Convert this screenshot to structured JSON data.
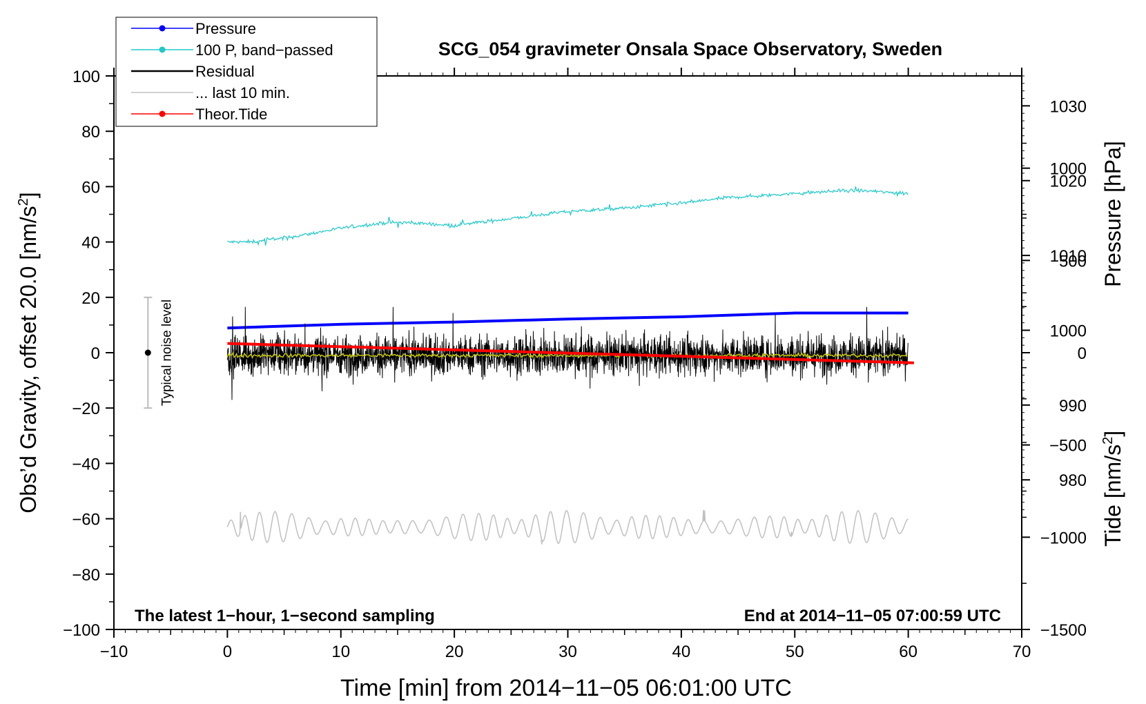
{
  "chart_data": {
    "type": "line",
    "title": "SCG_054 gravimeter Onsala Space Observatory, Sweden",
    "xlabel": "Time [min] from 2014−11−05 06:01:00 UTC",
    "ylabel_left_main": "Obs’d Gravity, offset 20.0 [nm/s",
    "ylabel_left_sup": "2",
    "ylabel_left_end": "]",
    "ylabel_right_pressure": "Pressure [hPa]",
    "ylabel_right_tide_main": "Tide [nm/s",
    "ylabel_right_tide_sup": "2",
    "ylabel_right_tide_end": "]",
    "xlim": [
      -10,
      70
    ],
    "ylim_left": [
      -100,
      100
    ],
    "ylim_pressure": [
      960,
      1034
    ],
    "ylim_tide": [
      -1500,
      1500
    ],
    "x_ticks": [
      "−10",
      "0",
      "10",
      "20",
      "30",
      "40",
      "50",
      "60",
      "70"
    ],
    "x_tick_values": [
      -10,
      0,
      10,
      20,
      30,
      40,
      50,
      60,
      70
    ],
    "y_left_ticks": [
      "100",
      "80",
      "60",
      "40",
      "20",
      "0",
      "−20",
      "−40",
      "−60",
      "−80",
      "−100"
    ],
    "y_left_tick_values": [
      100,
      80,
      60,
      40,
      20,
      0,
      -20,
      -40,
      -60,
      -80,
      -100
    ],
    "pressure_ticks": [
      "1030",
      "1020",
      "1010",
      "1000",
      "990",
      "980"
    ],
    "pressure_tick_values": [
      1030,
      1020,
      1010,
      1000,
      990,
      980
    ],
    "tide_ticks": [
      "1000",
      "500",
      "0",
      "−500",
      "−1000",
      "−1500"
    ],
    "tide_tick_values": [
      1000,
      500,
      0,
      -500,
      -1000,
      -1500
    ],
    "bottom_left_note": "The latest 1−hour, 1−second sampling",
    "bottom_right_note": "End at 2014−11−05 07:00:59 UTC",
    "noise_indicator": {
      "label": "Typical noise level",
      "x": -7,
      "y_center": 0,
      "y_low": -20,
      "y_high": 20
    },
    "legend": [
      {
        "label": "Pressure",
        "color": "#0000ff",
        "marker": true
      },
      {
        "label": "100 P, band−passed",
        "color": "#20c8c8",
        "marker": true
      },
      {
        "label": "Residual",
        "color": "#000000",
        "marker": false
      },
      {
        "label": "... last 10 min.",
        "color": "#c0c0c0",
        "marker": false
      },
      {
        "label": "Theor.Tide",
        "color": "#ff0000",
        "marker": true
      }
    ],
    "series": [
      {
        "name": "Pressure",
        "axis": "pressure",
        "color": "#0000ff",
        "x": [
          0,
          10,
          20,
          30,
          40,
          50,
          60
        ],
        "values": [
          1000.3,
          1000.8,
          1001.1,
          1001.5,
          1001.8,
          1002.3,
          1002.3
        ]
      },
      {
        "name": "100 P, band-passed",
        "axis": "left",
        "color": "#20c8c8",
        "x": [
          0,
          2,
          4,
          6,
          8,
          10,
          12,
          14,
          16,
          18,
          20,
          22,
          24,
          26,
          28,
          30,
          32,
          34,
          36,
          38,
          40,
          42,
          44,
          46,
          48,
          50,
          52,
          54,
          56,
          58,
          60
        ],
        "values": [
          40,
          40,
          41,
          42,
          43.5,
          45,
          46,
          47,
          47,
          46.5,
          46,
          47,
          48,
          49,
          50,
          51,
          51.5,
          52,
          52.5,
          53.5,
          54,
          55,
          56,
          56.5,
          57,
          57.5,
          58,
          58.5,
          58.5,
          58,
          57.5
        ]
      },
      {
        "name": "Residual",
        "axis": "left",
        "color": "#000000",
        "x_range": [
          0,
          60
        ],
        "mean": -1,
        "spread": 8
      },
      {
        "name": "Residual smoothed",
        "axis": "left",
        "color": "#c8c800",
        "x_range": [
          0,
          60
        ],
        "mean": -1,
        "spread": 1
      },
      {
        "name": "Theor.Tide",
        "axis": "tide",
        "color": "#ff0000",
        "x": [
          0,
          60.5
        ],
        "values": [
          50,
          -55
        ]
      },
      {
        "name": "... last 10 min.",
        "axis": "left",
        "color": "#c0c0c0",
        "x_range": [
          0,
          60
        ],
        "mean": -63,
        "spread": 6
      }
    ]
  }
}
